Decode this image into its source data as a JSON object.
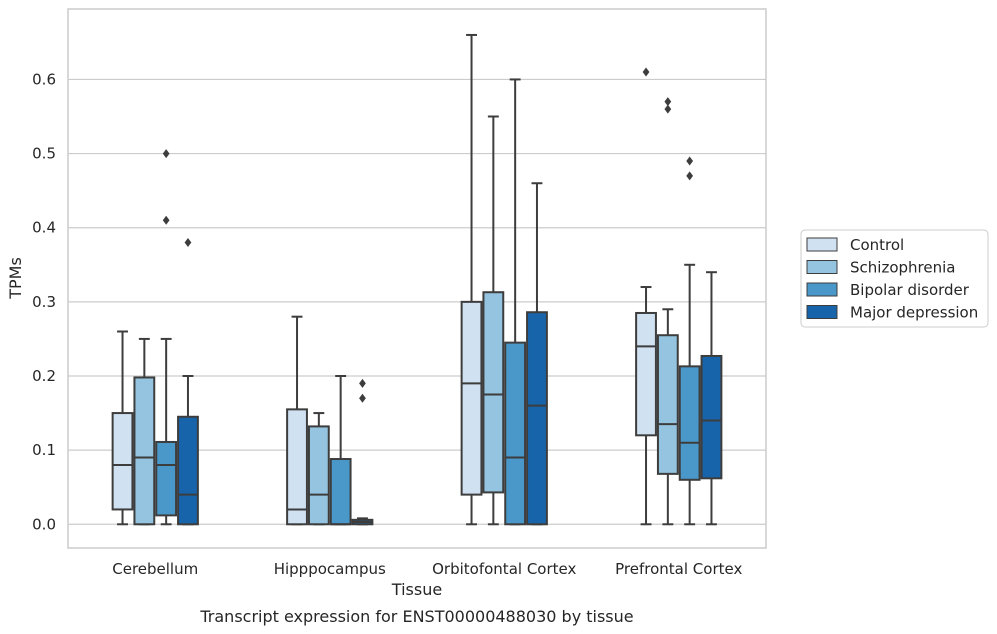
{
  "chart_data": {
    "type": "box",
    "caption": "Transcript expression for ENST00000488030 by tissue",
    "xlabel": "Tissue",
    "ylabel": "TPMs",
    "ylim": [
      -0.032,
      0.695
    ],
    "yticks": [
      0.0,
      0.1,
      0.2,
      0.3,
      0.4,
      0.5,
      0.6
    ],
    "ytick_labels": [
      "0.0",
      "0.1",
      "0.2",
      "0.3",
      "0.4",
      "0.5",
      "0.6"
    ],
    "grid": "horizontal",
    "legend_position": "right",
    "categories": [
      "Cerebellum",
      "Hipppocampus",
      "Orbitofontal Cortex",
      "Prefrontal Cortex"
    ],
    "series": [
      {
        "name": "Control",
        "color": "#d0e1f2",
        "boxes": [
          {
            "whislo": 0.0,
            "q1": 0.02,
            "med": 0.08,
            "q3": 0.15,
            "whishi": 0.26,
            "fliers": []
          },
          {
            "whislo": 0.0,
            "q1": 0.0,
            "med": 0.02,
            "q3": 0.155,
            "whishi": 0.28,
            "fliers": []
          },
          {
            "whislo": 0.0,
            "q1": 0.04,
            "med": 0.19,
            "q3": 0.3,
            "whishi": 0.66,
            "fliers": []
          },
          {
            "whislo": 0.0,
            "q1": 0.12,
            "med": 0.24,
            "q3": 0.285,
            "whishi": 0.32,
            "fliers": [
              0.61
            ]
          }
        ]
      },
      {
        "name": "Schizophrenia",
        "color": "#94c4df",
        "boxes": [
          {
            "whislo": 0.0,
            "q1": 0.0,
            "med": 0.09,
            "q3": 0.198,
            "whishi": 0.25,
            "fliers": []
          },
          {
            "whislo": 0.0,
            "q1": 0.0,
            "med": 0.04,
            "q3": 0.132,
            "whishi": 0.15,
            "fliers": []
          },
          {
            "whislo": 0.0,
            "q1": 0.043,
            "med": 0.175,
            "q3": 0.313,
            "whishi": 0.55,
            "fliers": []
          },
          {
            "whislo": 0.0,
            "q1": 0.068,
            "med": 0.135,
            "q3": 0.255,
            "whishi": 0.29,
            "fliers": [
              0.56,
              0.57
            ]
          }
        ]
      },
      {
        "name": "Bipolar disorder",
        "color": "#4a98c9",
        "boxes": [
          {
            "whislo": 0.0,
            "q1": 0.012,
            "med": 0.08,
            "q3": 0.111,
            "whishi": 0.25,
            "fliers": [
              0.41,
              0.5
            ]
          },
          {
            "whislo": 0.0,
            "q1": 0.0,
            "med": 0.0,
            "q3": 0.088,
            "whishi": 0.2,
            "fliers": []
          },
          {
            "whislo": 0.0,
            "q1": 0.0,
            "med": 0.09,
            "q3": 0.245,
            "whishi": 0.6,
            "fliers": []
          },
          {
            "whislo": 0.0,
            "q1": 0.06,
            "med": 0.11,
            "q3": 0.213,
            "whishi": 0.35,
            "fliers": [
              0.47,
              0.49
            ]
          }
        ]
      },
      {
        "name": "Major depression",
        "color": "#1764ab",
        "boxes": [
          {
            "whislo": 0.0,
            "q1": 0.0,
            "med": 0.04,
            "q3": 0.145,
            "whishi": 0.2,
            "fliers": [
              0.38
            ]
          },
          {
            "whislo": 0.0,
            "q1": 0.0,
            "med": 0.003,
            "q3": 0.006,
            "whishi": 0.008,
            "fliers": [
              0.17,
              0.19
            ]
          },
          {
            "whislo": 0.0,
            "q1": 0.0,
            "med": 0.16,
            "q3": 0.286,
            "whishi": 0.46,
            "fliers": []
          },
          {
            "whislo": 0.0,
            "q1": 0.062,
            "med": 0.14,
            "q3": 0.227,
            "whishi": 0.34,
            "fliers": []
          }
        ]
      }
    ]
  }
}
